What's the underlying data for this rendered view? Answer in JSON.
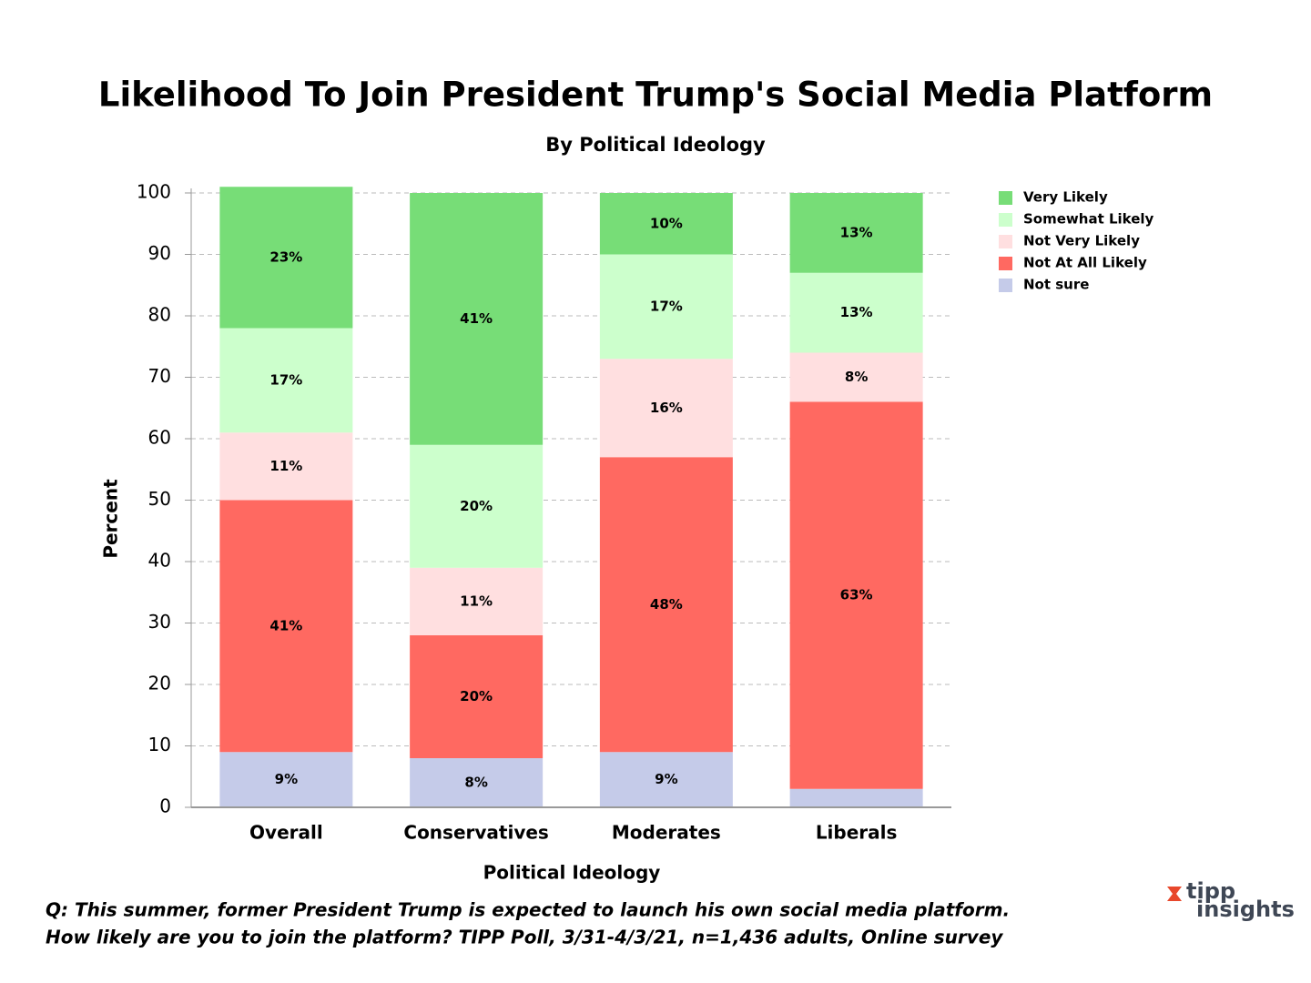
{
  "chart_data": {
    "type": "stacked_bar",
    "title": "Likelihood To Join President Trump's Social Media Platform",
    "subtitle": "By Political Ideology",
    "x_label": "Political Ideology",
    "y_label": "Percent",
    "categories": [
      "Overall",
      "Conservatives",
      "Moderates",
      "Liberals"
    ],
    "series": [
      {
        "name": "Very Likely",
        "color": "#77dd77",
        "values": [
          23,
          41,
          10,
          13
        ],
        "value_labels": [
          "23%",
          "41%",
          "10%",
          "13%"
        ]
      },
      {
        "name": "Somewhat Likely",
        "color": "#ccffcc",
        "values": [
          17,
          20,
          17,
          13
        ],
        "value_labels": [
          "17%",
          "20%",
          "17%",
          "13%"
        ]
      },
      {
        "name": "Not Very Likely",
        "color": "#ffdfe0",
        "values": [
          11,
          11,
          16,
          8
        ],
        "value_labels": [
          "11%",
          "11%",
          "16%",
          "8%"
        ]
      },
      {
        "name": "Not At All Likely",
        "color": "#ff6961",
        "values": [
          41,
          20,
          48,
          63
        ],
        "value_labels": [
          "41%",
          "20%",
          "48%",
          "63%"
        ]
      },
      {
        "name": "Not sure",
        "color": "#c5cbe9",
        "values": [
          9,
          8,
          9,
          3
        ],
        "value_labels": [
          "9%",
          "8%",
          "9%",
          null
        ]
      }
    ],
    "ylim": [
      0,
      100
    ],
    "yticks": [
      0,
      10,
      20,
      30,
      40,
      50,
      60,
      70,
      80,
      90,
      100
    ],
    "grid": true,
    "legend": "right",
    "footnote": [
      "Q:  This summer, former President Trump is expected to launch his own social media platform.",
      "How likely are you to join the platform? TIPP Poll, 3/31-4/3/21, n=1,436 adults, Online survey"
    ],
    "logo": [
      "tipp",
      "insights"
    ]
  }
}
